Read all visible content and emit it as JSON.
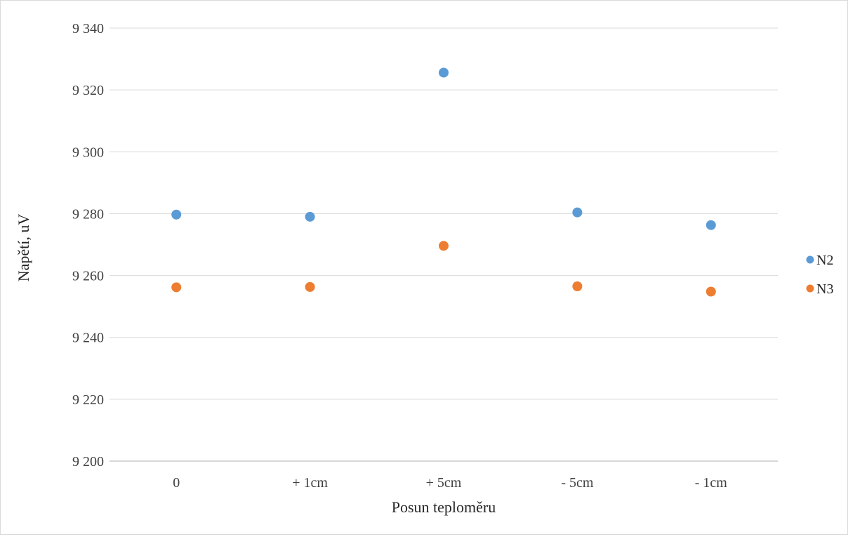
{
  "chart_data": {
    "type": "scatter",
    "title": "",
    "xlabel": "Posun teploměru",
    "ylabel": "Napětí, uV",
    "categories": [
      "0",
      "+ 1cm",
      "+ 5cm",
      "- 5cm",
      "- 1cm"
    ],
    "series": [
      {
        "name": "N2",
        "color": "#5b9bd5",
        "values": [
          9279.7,
          9279.0,
          9325.6,
          9280.4,
          9276.3
        ]
      },
      {
        "name": "N3",
        "color": "#ed7d31",
        "values": [
          9256.2,
          9256.3,
          9269.6,
          9256.5,
          9254.8
        ]
      }
    ],
    "ylim": [
      9200,
      9340
    ],
    "ytick_step": 20,
    "ytick_labels": [
      "9 200",
      "9 220",
      "9 240",
      "9 260",
      "9 280",
      "9 300",
      "9 320",
      "9 340"
    ],
    "grid": true,
    "legend": "right"
  }
}
